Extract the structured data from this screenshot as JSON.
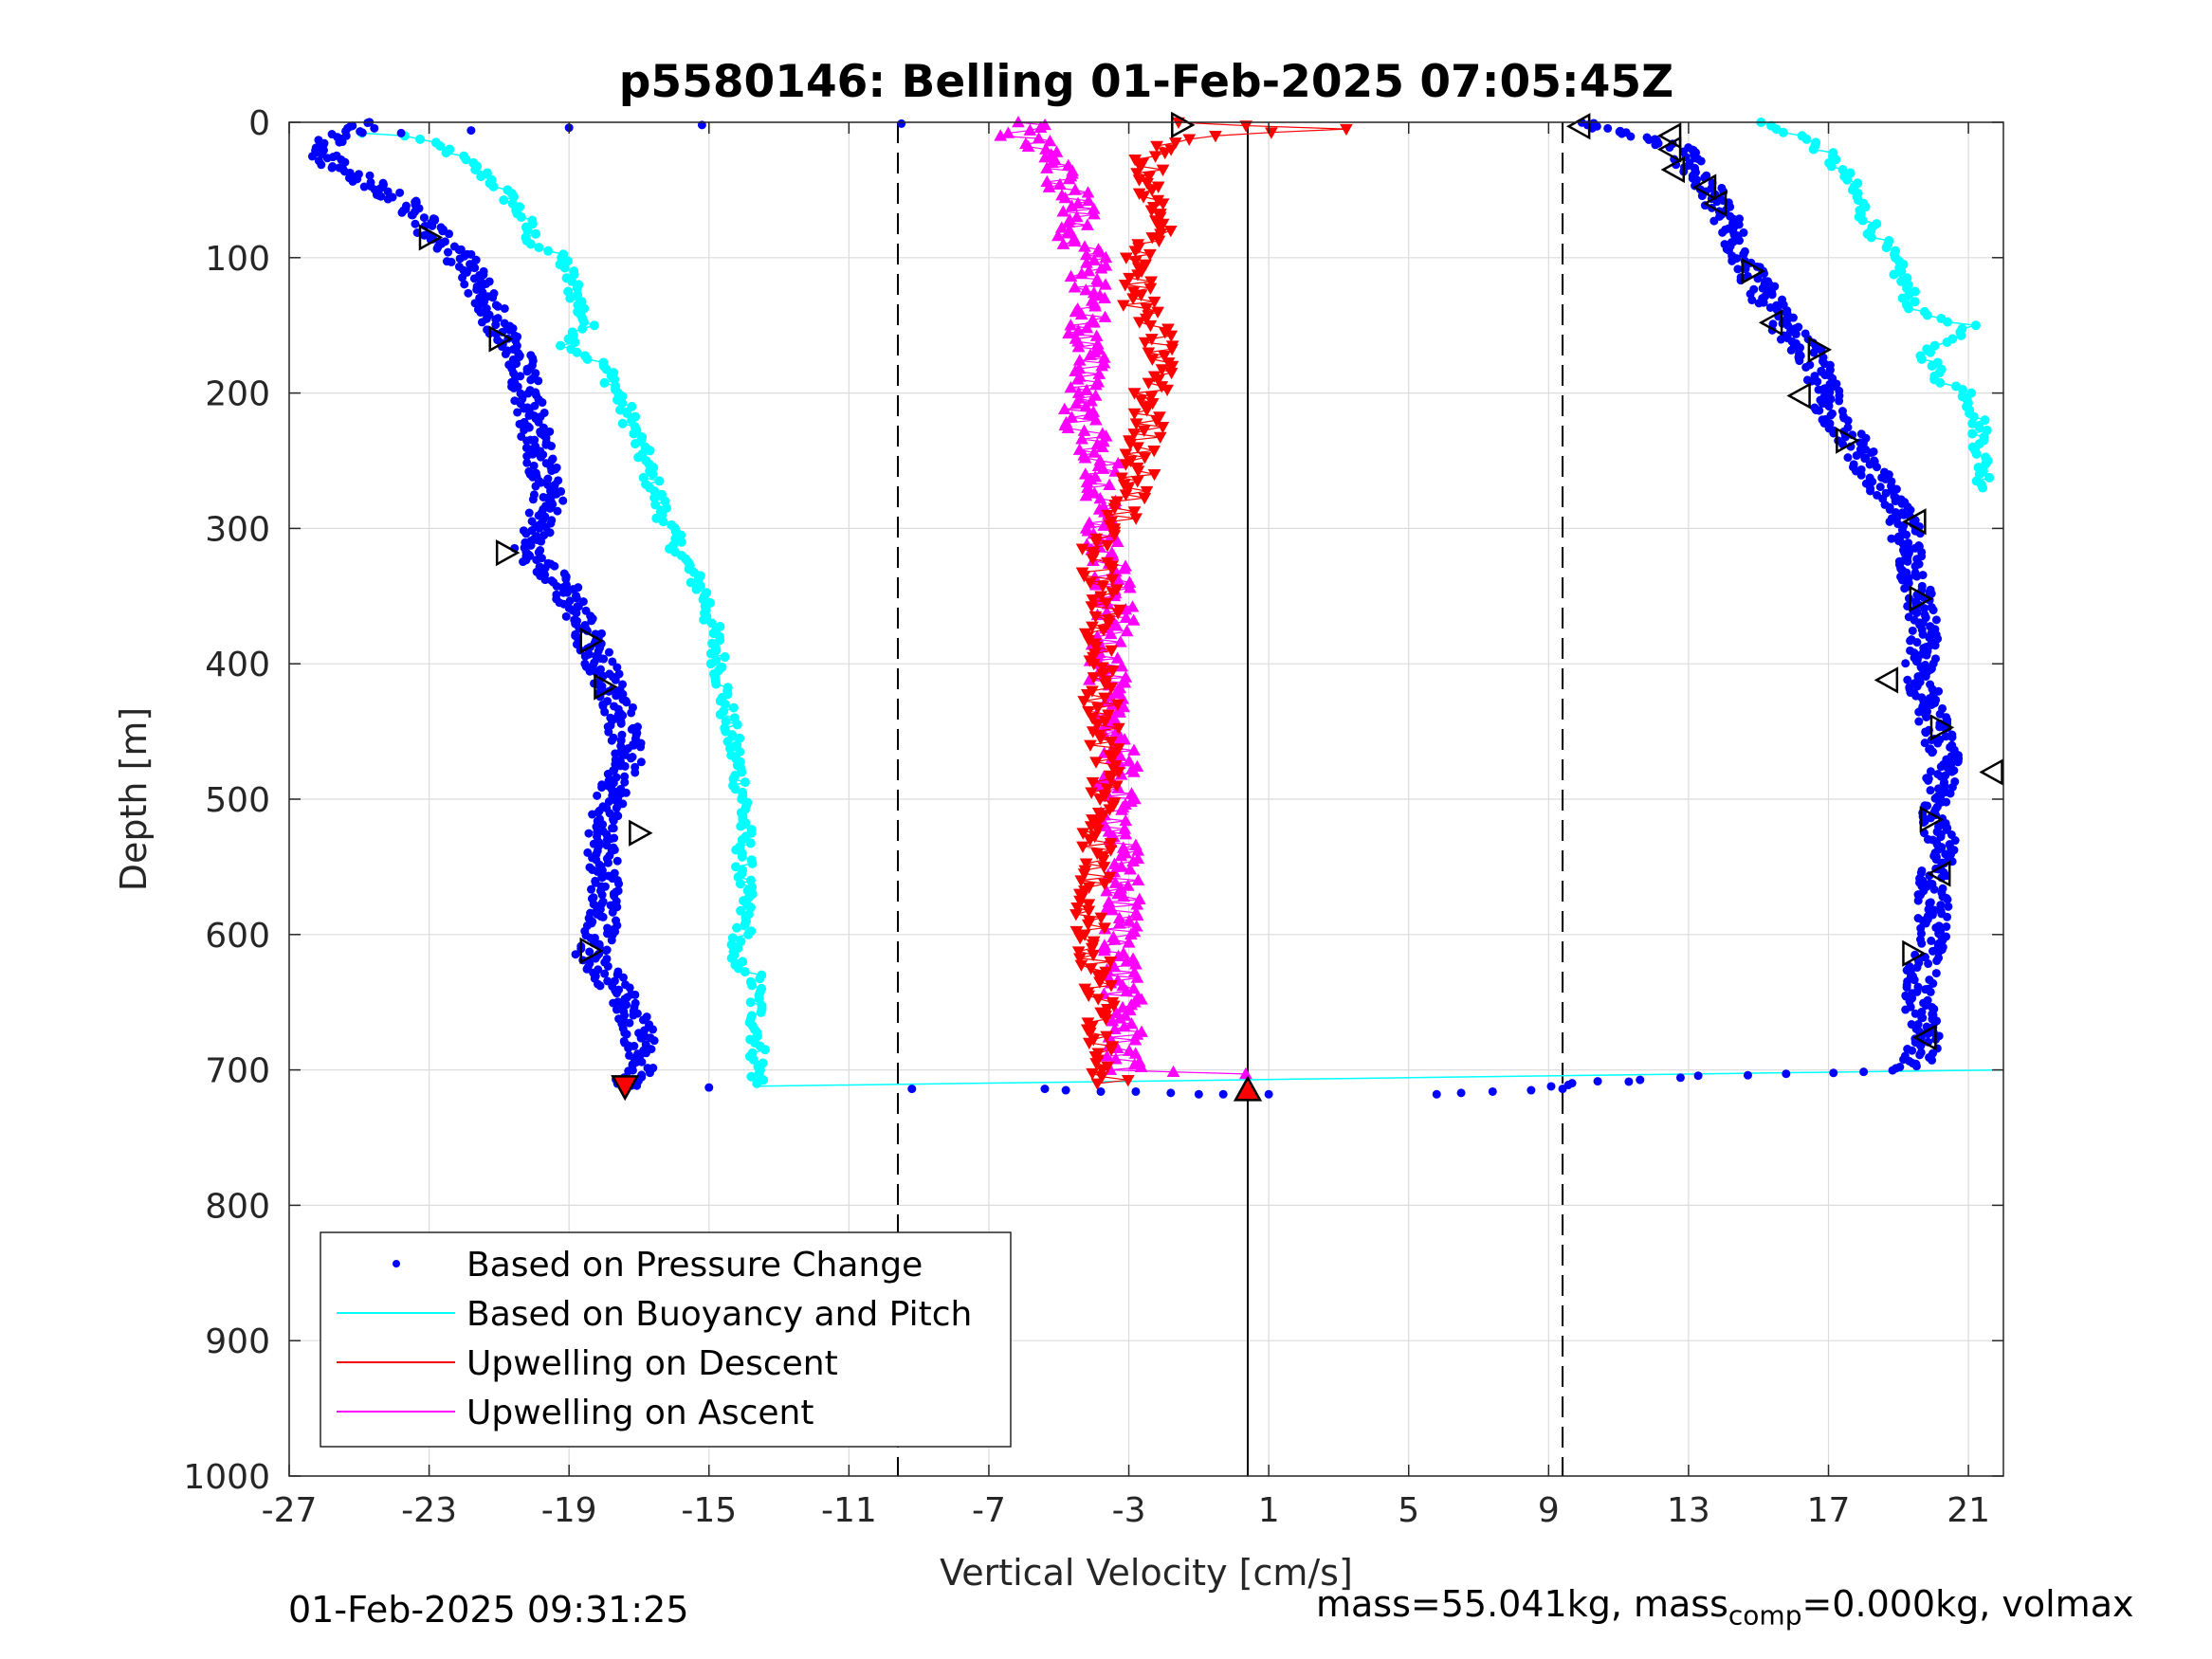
{
  "chart_data": {
    "type": "scatter",
    "title": "p5580146: Belling 01-Feb-2025 07:05:45Z",
    "xlabel": "Vertical Velocity [cm/s]",
    "ylabel": "Depth [m]",
    "xlim": [
      -27,
      22
    ],
    "ylim": [
      0,
      1000
    ],
    "y_reversed": true,
    "grid": true,
    "xticks": [
      -27,
      -23,
      -19,
      -15,
      -11,
      -7,
      -3,
      1,
      5,
      9,
      13,
      17,
      21
    ],
    "yticks": [
      0,
      100,
      200,
      300,
      400,
      500,
      600,
      700,
      800,
      900,
      1000
    ],
    "legend_position": "bottom-left",
    "colors": {
      "pressure": "#0000ff",
      "buoyancy": "#00ffff",
      "descent": "#ff0000",
      "ascent": "#ff00ff",
      "marker_outline": "#000000"
    },
    "reference_lines": {
      "dashed_x": [
        -9.6,
        9.4
      ],
      "solid_x": 0.4
    },
    "series": [
      {
        "name": "Based on Pressure Change",
        "marker": "dot",
        "descent_profile": [
          [
            0,
            -24.6
          ],
          [
            10,
            -25.5
          ],
          [
            20,
            -26.3
          ],
          [
            35,
            -25.4
          ],
          [
            50,
            -24.2
          ],
          [
            70,
            -23.2
          ],
          [
            85,
            -22.8
          ],
          [
            100,
            -22.1
          ],
          [
            120,
            -21.6
          ],
          [
            150,
            -21.0
          ],
          [
            180,
            -20.3
          ],
          [
            210,
            -20.1
          ],
          [
            250,
            -19.8
          ],
          [
            280,
            -19.6
          ],
          [
            300,
            -19.9
          ],
          [
            320,
            -20.2
          ],
          [
            340,
            -19.2
          ],
          [
            370,
            -18.6
          ],
          [
            400,
            -18.1
          ],
          [
            430,
            -17.6
          ],
          [
            470,
            -17.3
          ],
          [
            500,
            -17.8
          ],
          [
            530,
            -18.1
          ],
          [
            560,
            -17.9
          ],
          [
            590,
            -18.0
          ],
          [
            615,
            -18.4
          ],
          [
            640,
            -17.6
          ],
          [
            670,
            -17.0
          ],
          [
            700,
            -17.0
          ],
          [
            712,
            -17.5
          ]
        ],
        "ascent_profile": [
          [
            0,
            9.8
          ],
          [
            10,
            11.5
          ],
          [
            20,
            12.8
          ],
          [
            40,
            13.3
          ],
          [
            60,
            13.8
          ],
          [
            80,
            14.2
          ],
          [
            100,
            14.6
          ],
          [
            130,
            15.2
          ],
          [
            150,
            15.7
          ],
          [
            170,
            16.4
          ],
          [
            190,
            16.8
          ],
          [
            210,
            17.0
          ],
          [
            240,
            17.8
          ],
          [
            270,
            18.5
          ],
          [
            300,
            19.2
          ],
          [
            330,
            19.4
          ],
          [
            350,
            19.6
          ],
          [
            380,
            19.7
          ],
          [
            410,
            19.6
          ],
          [
            440,
            20.0
          ],
          [
            470,
            20.3
          ],
          [
            500,
            20.1
          ],
          [
            530,
            20.2
          ],
          [
            560,
            20.0
          ],
          [
            600,
            20.0
          ],
          [
            640,
            19.5
          ],
          [
            680,
            19.8
          ],
          [
            695,
            19.5
          ],
          [
            700,
            18.5
          ],
          [
            703,
            16.0
          ],
          [
            705,
            13.5
          ],
          [
            708,
            11.0
          ],
          [
            712,
            9.0
          ]
        ],
        "bottom_points": [
          [
            713,
            -15.0
          ],
          [
            714,
            -9.2
          ],
          [
            714,
            -5.4
          ],
          [
            715,
            -4.8
          ],
          [
            716,
            -3.8
          ],
          [
            716,
            -2.8
          ],
          [
            717,
            -1.8
          ],
          [
            718,
            -1.0
          ],
          [
            718,
            -0.3
          ],
          [
            718,
            1.0
          ],
          [
            718,
            5.8
          ],
          [
            717,
            6.5
          ],
          [
            716,
            7.4
          ],
          [
            715,
            8.5
          ],
          [
            714,
            9.4
          ]
        ],
        "surface_points": [
          [
            2,
            -15.2
          ],
          [
            1,
            -9.5
          ],
          [
            4,
            -19.0
          ],
          [
            8,
            -23.8
          ],
          [
            6,
            -21.8
          ]
        ]
      },
      {
        "name": "Based on Buoyancy and Pitch",
        "marker": "circle-line",
        "descent_profile": [
          [
            8,
            -25.0
          ],
          [
            10,
            -23.6
          ],
          [
            20,
            -22.5
          ],
          [
            35,
            -21.6
          ],
          [
            50,
            -20.9
          ],
          [
            70,
            -20.3
          ],
          [
            90,
            -20.0
          ],
          [
            100,
            -19.2
          ],
          [
            120,
            -18.9
          ],
          [
            150,
            -18.5
          ],
          [
            165,
            -19.0
          ],
          [
            180,
            -18.0
          ],
          [
            200,
            -17.6
          ],
          [
            230,
            -17.1
          ],
          [
            260,
            -16.7
          ],
          [
            290,
            -16.3
          ],
          [
            320,
            -15.8
          ],
          [
            350,
            -15.1
          ],
          [
            400,
            -14.7
          ],
          [
            450,
            -14.4
          ],
          [
            500,
            -14.0
          ],
          [
            550,
            -14.0
          ],
          [
            600,
            -14.0
          ],
          [
            615,
            -14.5
          ],
          [
            630,
            -13.7
          ],
          [
            680,
            -13.6
          ],
          [
            710,
            -13.6
          ]
        ],
        "ascent_profile": [
          [
            0,
            15.0
          ],
          [
            10,
            16.2
          ],
          [
            20,
            16.8
          ],
          [
            40,
            17.5
          ],
          [
            60,
            17.9
          ],
          [
            80,
            18.3
          ],
          [
            100,
            18.8
          ],
          [
            120,
            19.2
          ],
          [
            140,
            19.5
          ],
          [
            150,
            21.0
          ],
          [
            170,
            19.8
          ],
          [
            190,
            20.2
          ],
          [
            200,
            21.0
          ],
          [
            220,
            21.3
          ],
          [
            250,
            21.4
          ],
          [
            270,
            21.5
          ]
        ],
        "bottom_line": [
          [
            712,
            -13.6
          ],
          [
            700,
            22.0
          ]
        ]
      },
      {
        "name": "Upwelling on Descent",
        "marker": "triangle-down",
        "profile": [
          [
            0,
            -1.6
          ],
          [
            5,
            3.2
          ],
          [
            10,
            -1.0
          ],
          [
            20,
            -2.2
          ],
          [
            40,
            -2.6
          ],
          [
            60,
            -2.4
          ],
          [
            80,
            -2.2
          ],
          [
            100,
            -2.6
          ],
          [
            130,
            -2.8
          ],
          [
            160,
            -2.2
          ],
          [
            180,
            -2.0
          ],
          [
            200,
            -2.4
          ],
          [
            230,
            -2.5
          ],
          [
            260,
            -2.7
          ],
          [
            290,
            -3.2
          ],
          [
            320,
            -4.0
          ],
          [
            350,
            -3.7
          ],
          [
            380,
            -3.8
          ],
          [
            410,
            -3.9
          ],
          [
            440,
            -3.7
          ],
          [
            480,
            -3.6
          ],
          [
            520,
            -3.8
          ],
          [
            560,
            -4.0
          ],
          [
            600,
            -4.1
          ],
          [
            640,
            -3.9
          ],
          [
            680,
            -3.7
          ],
          [
            710,
            -3.5
          ]
        ]
      },
      {
        "name": "Upwelling on Ascent",
        "marker": "triangle-up",
        "profile": [
          [
            0,
            -5.8
          ],
          [
            10,
            -6.2
          ],
          [
            20,
            -5.2
          ],
          [
            40,
            -5.0
          ],
          [
            60,
            -4.4
          ],
          [
            80,
            -4.6
          ],
          [
            100,
            -4.2
          ],
          [
            130,
            -4.0
          ],
          [
            160,
            -4.3
          ],
          [
            190,
            -4.1
          ],
          [
            220,
            -4.4
          ],
          [
            250,
            -3.8
          ],
          [
            280,
            -3.9
          ],
          [
            310,
            -3.8
          ],
          [
            340,
            -3.5
          ],
          [
            370,
            -3.4
          ],
          [
            400,
            -3.6
          ],
          [
            430,
            -3.7
          ],
          [
            460,
            -3.2
          ],
          [
            490,
            -3.4
          ],
          [
            520,
            -3.3
          ],
          [
            560,
            -3.2
          ],
          [
            600,
            -3.2
          ],
          [
            640,
            -3.2
          ],
          [
            680,
            -3.1
          ],
          [
            700,
            -3.2
          ],
          [
            703,
            0.3
          ]
        ]
      }
    ],
    "open_markers": [
      {
        "dir": "right",
        "x": -23.0,
        "y": 85
      },
      {
        "dir": "right",
        "x": -21.0,
        "y": 160
      },
      {
        "dir": "right",
        "x": -20.8,
        "y": 318
      },
      {
        "dir": "right",
        "x": -18.4,
        "y": 383
      },
      {
        "dir": "right",
        "x": -18.0,
        "y": 417
      },
      {
        "dir": "right",
        "x": -17.0,
        "y": 525
      },
      {
        "dir": "right",
        "x": -18.4,
        "y": 612
      },
      {
        "dir": "right",
        "x": -1.5,
        "y": 2
      },
      {
        "dir": "left",
        "x": 9.9,
        "y": 3
      },
      {
        "dir": "left",
        "x": 12.5,
        "y": 10
      },
      {
        "dir": "left",
        "x": 12.5,
        "y": 20
      },
      {
        "dir": "left",
        "x": 12.6,
        "y": 35
      },
      {
        "dir": "left",
        "x": 13.5,
        "y": 48
      },
      {
        "dir": "left",
        "x": 13.8,
        "y": 60
      },
      {
        "dir": "right",
        "x": 14.8,
        "y": 110
      },
      {
        "dir": "left",
        "x": 15.4,
        "y": 148
      },
      {
        "dir": "right",
        "x": 16.7,
        "y": 168
      },
      {
        "dir": "left",
        "x": 16.2,
        "y": 202
      },
      {
        "dir": "right",
        "x": 17.5,
        "y": 235
      },
      {
        "dir": "left",
        "x": 19.5,
        "y": 295
      },
      {
        "dir": "right",
        "x": 19.6,
        "y": 352
      },
      {
        "dir": "left",
        "x": 18.7,
        "y": 412
      },
      {
        "dir": "right",
        "x": 20.2,
        "y": 447
      },
      {
        "dir": "left",
        "x": 21.7,
        "y": 480
      },
      {
        "dir": "right",
        "x": 19.9,
        "y": 515
      },
      {
        "dir": "left",
        "x": 20.2,
        "y": 555
      },
      {
        "dir": "right",
        "x": 19.4,
        "y": 614
      },
      {
        "dir": "left",
        "x": 19.8,
        "y": 676
      }
    ],
    "filled_markers": [
      {
        "shape": "triangle-up",
        "x": 0.4,
        "y": 715
      },
      {
        "shape": "triangle-down",
        "x": -17.4,
        "y": 712
      }
    ]
  },
  "footer": {
    "timestamp": "01-Feb-2025 09:31:25",
    "mass_text": "mass=55.041kg, mass",
    "comp_sub": "comp",
    "tail_text": "=0.000kg, volmax"
  }
}
